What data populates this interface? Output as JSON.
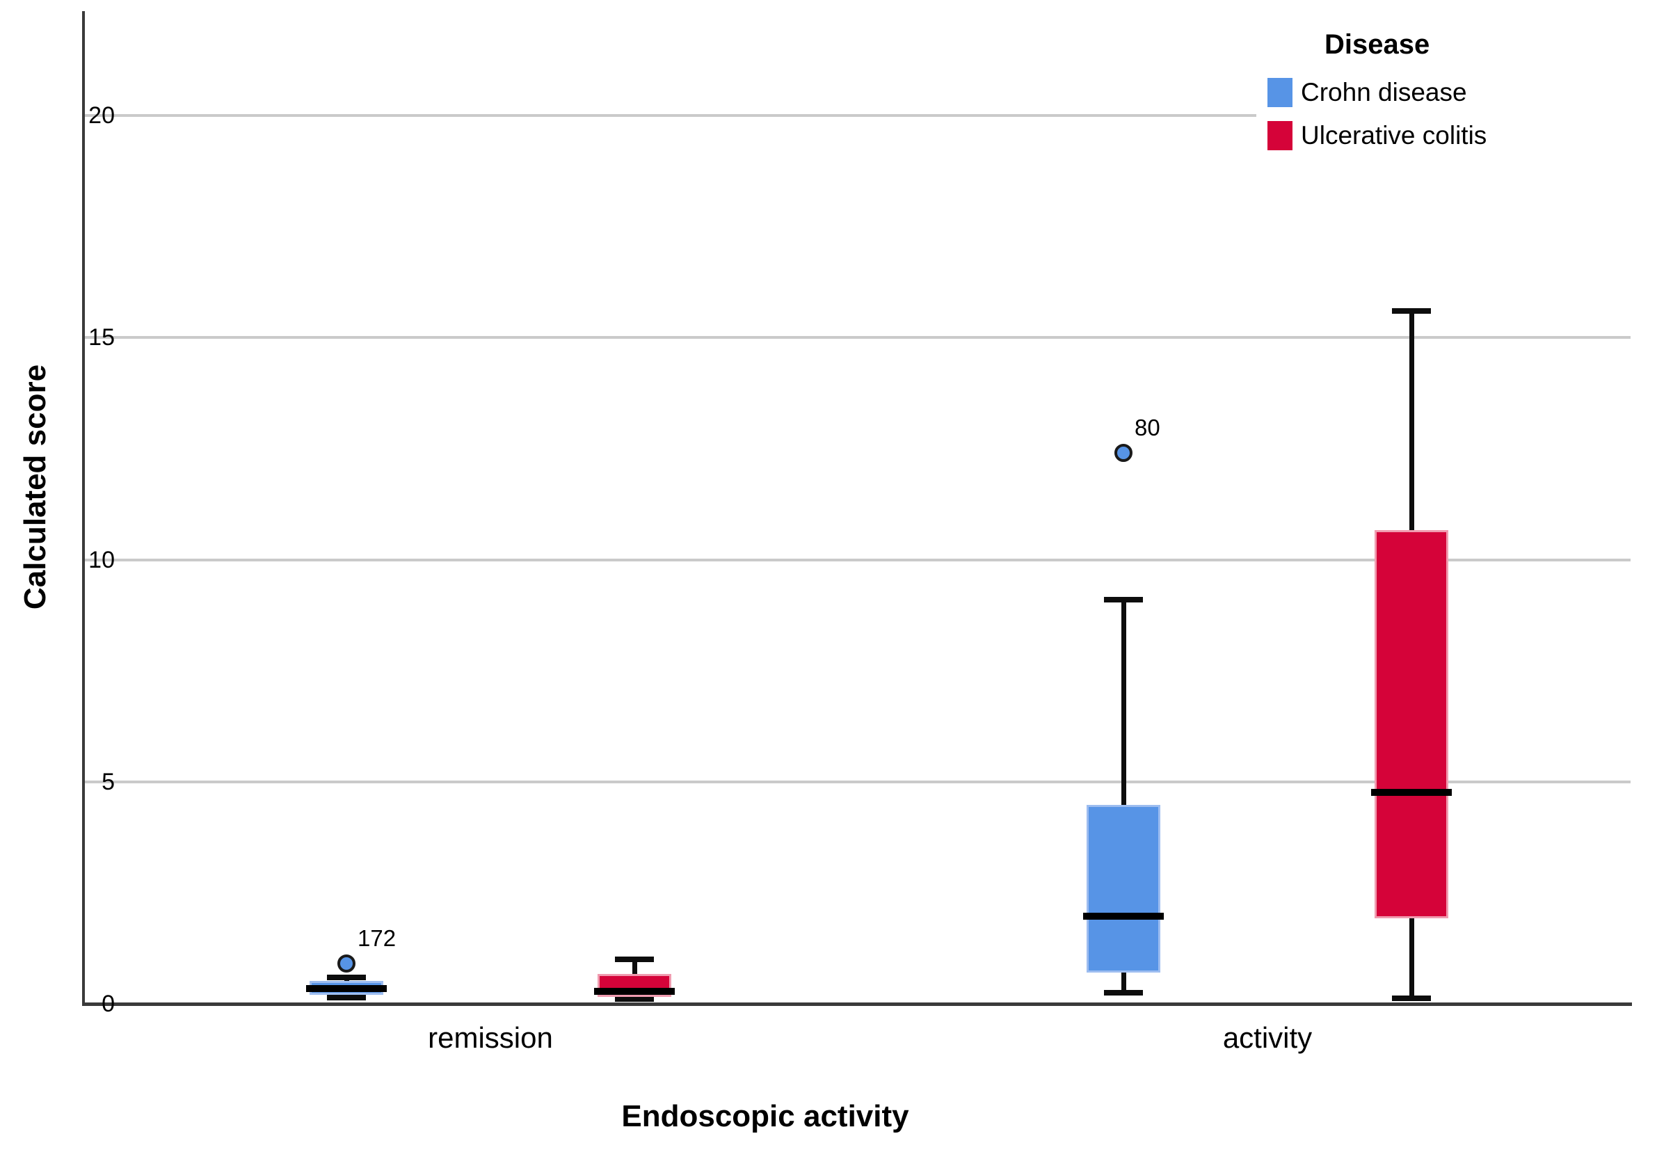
{
  "chart_data": {
    "type": "boxplot",
    "title": "",
    "xlabel": "Endoscopic activity",
    "ylabel": "Calculated score",
    "categories": [
      "remission",
      "activity"
    ],
    "y_ticks": [
      0,
      5,
      10,
      15,
      20
    ],
    "ylim": [
      0,
      22.4
    ],
    "grid": "horizontal gridlines at 5,10,15,20",
    "gridline_color": "#cacaca",
    "axis_color": "#3a3a3a",
    "legend": {
      "title": "Disease",
      "position": "top-right",
      "entries": [
        {
          "label": "Crohn disease",
          "color": "#5794E6"
        },
        {
          "label": "Ulcerative colitis",
          "color": "#D50339"
        }
      ]
    },
    "series": [
      {
        "name": "Crohn disease",
        "color": "#5794E6",
        "border_color": "#9dbdf0",
        "boxes": [
          {
            "category": "remission",
            "min": 0.14,
            "q1": 0.2,
            "median": 0.34,
            "q3": 0.52,
            "max": 0.6,
            "outliers": [
              {
                "value": 0.91,
                "label": "172"
              }
            ]
          },
          {
            "category": "activity",
            "min": 0.25,
            "q1": 0.7,
            "median": 1.97,
            "q3": 4.48,
            "max": 9.1,
            "outliers": [
              {
                "value": 12.4,
                "label": "80"
              }
            ]
          }
        ]
      },
      {
        "name": "Ulcerative colitis",
        "color": "#D50339",
        "border_color": "#f09cb0",
        "boxes": [
          {
            "category": "remission",
            "min": 0.11,
            "q1": 0.16,
            "median": 0.28,
            "q3": 0.67,
            "max": 1.0,
            "outliers": []
          },
          {
            "category": "activity",
            "min": 0.13,
            "q1": 1.93,
            "median": 4.76,
            "q3": 10.67,
            "max": 15.6,
            "outliers": []
          }
        ]
      }
    ]
  }
}
